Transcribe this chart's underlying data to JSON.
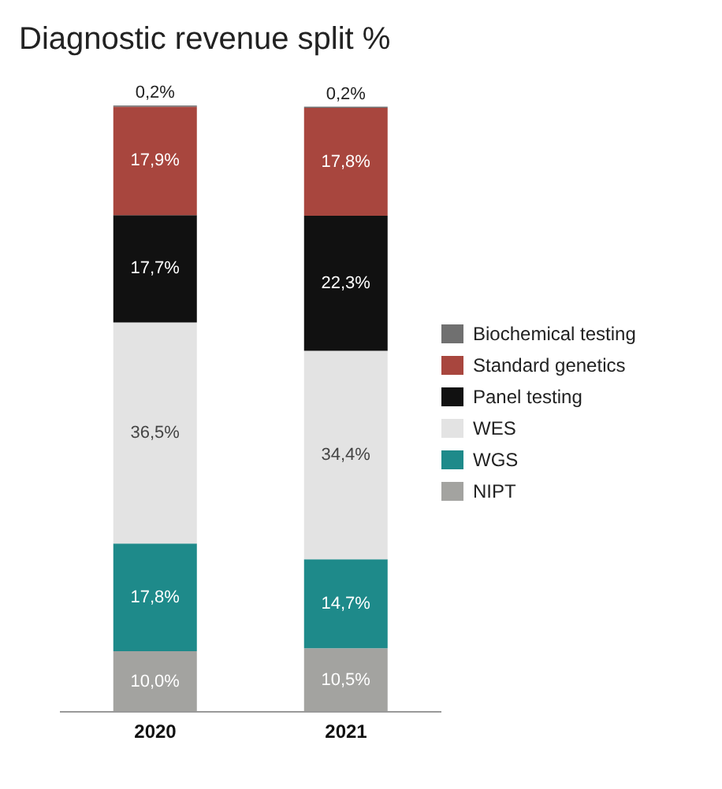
{
  "chart_data": {
    "type": "bar",
    "title": "Diagnostic revenue split %",
    "categories": [
      "2020",
      "2021"
    ],
    "stacked": true,
    "legend": "right",
    "grid": false,
    "series": [
      {
        "name": "NIPT",
        "color": "#a3a3a0",
        "values": [
          10.0,
          10.5
        ],
        "value_labels": [
          "10,0%",
          "10,5%"
        ]
      },
      {
        "name": "WGS",
        "color": "#1e8a8a",
        "values": [
          17.8,
          14.7
        ],
        "value_labels": [
          "17,8%",
          "14,7%"
        ]
      },
      {
        "name": "WES",
        "color": "#e3e3e3",
        "values": [
          36.5,
          34.4
        ],
        "value_labels": [
          "36,5%",
          "34,4%"
        ]
      },
      {
        "name": "Panel testing",
        "color": "#111111",
        "values": [
          17.7,
          22.3
        ],
        "value_labels": [
          "17,7%",
          "22,3%"
        ]
      },
      {
        "name": "Standard genetics",
        "color": "#a8463e",
        "values": [
          17.9,
          17.8
        ],
        "value_labels": [
          "17,9%",
          "17,8%"
        ]
      },
      {
        "name": "Biochemical testing",
        "color": "#707070",
        "values": [
          0.2,
          0.2
        ],
        "value_labels": [
          "0,2%",
          "0,2%"
        ]
      }
    ]
  }
}
